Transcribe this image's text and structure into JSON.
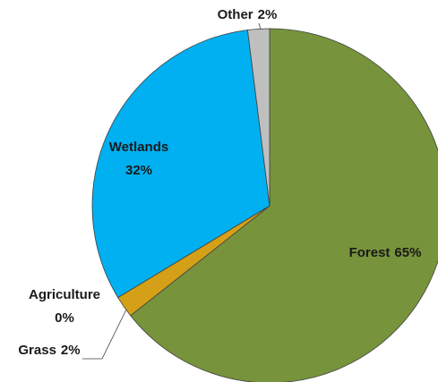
{
  "chart_data": {
    "type": "pie",
    "categories": [
      "Forest",
      "Grass",
      "Agriculture",
      "Wetlands",
      "Other"
    ],
    "values": [
      65,
      2,
      0,
      32,
      2
    ],
    "value_labels": [
      "65%",
      "2%",
      "0%",
      "32%",
      "2%"
    ],
    "colors": [
      "#77933c",
      "#d4a017",
      "#7f6000",
      "#00b0f0",
      "#bfbfbf"
    ]
  }
}
